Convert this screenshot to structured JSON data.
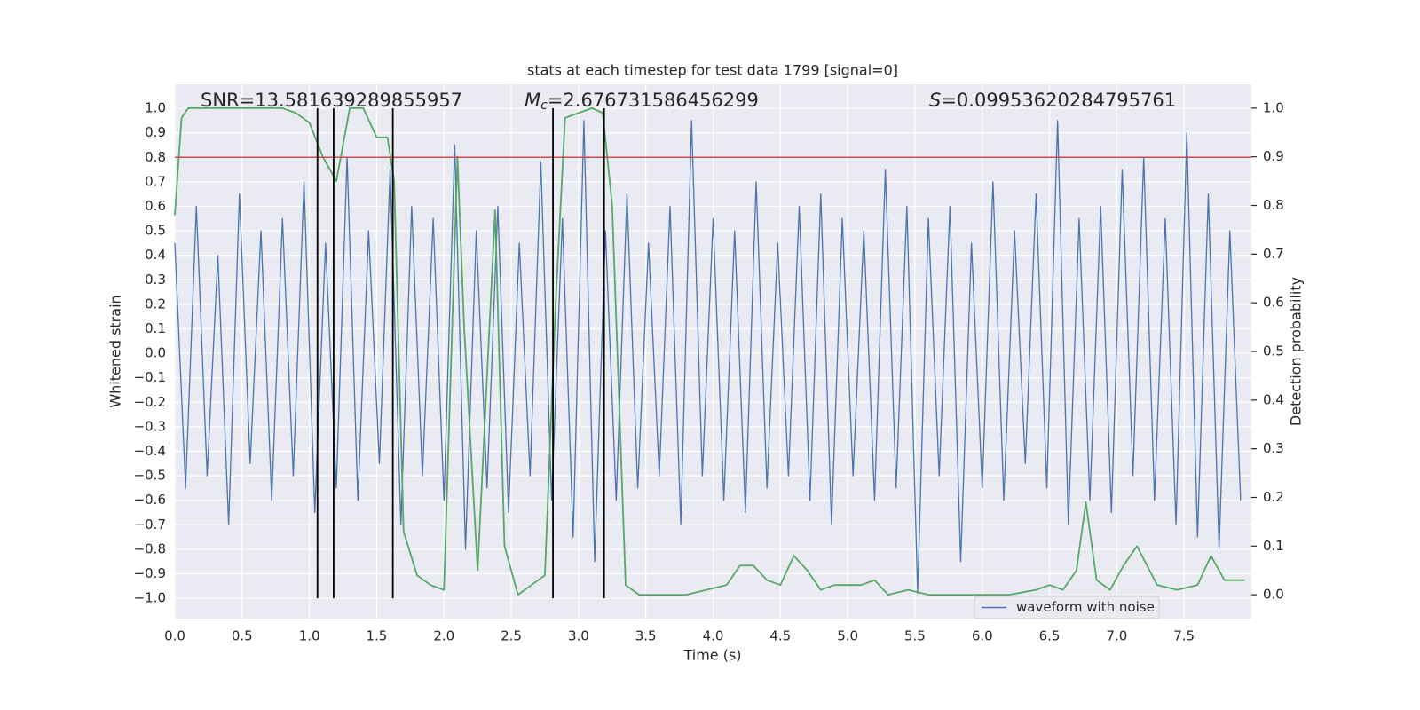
{
  "chart_data": {
    "type": "line",
    "title": "stats at each timestep for test data 1799 [signal=0]",
    "x_label": "Time (s)",
    "y_label": "Whitened strain",
    "y2_label": "Detection probability",
    "annotations": [
      {
        "text": "SNR=13.581639289855957"
      },
      {
        "symbol": "M",
        "subscript": "c",
        "text": "=2.676731586456299"
      },
      {
        "symbol": "S",
        "text": "=0.09953620284795761"
      }
    ],
    "xlim": [
      0,
      8
    ],
    "ylim": [
      -1.083,
      1.098
    ],
    "y2lim": [
      -0.049,
      1.049
    ],
    "xticks": [
      {
        "value": 0,
        "label": "0.0"
      },
      {
        "value": 0.5,
        "label": "0.5"
      },
      {
        "value": 1,
        "label": "1.0"
      },
      {
        "value": 1.5,
        "label": "1.5"
      },
      {
        "value": 2,
        "label": "2.0"
      },
      {
        "value": 2.5,
        "label": "2.5"
      },
      {
        "value": 3,
        "label": "3.0"
      },
      {
        "value": 3.5,
        "label": "3.5"
      },
      {
        "value": 4,
        "label": "4.0"
      },
      {
        "value": 4.5,
        "label": "4.5"
      },
      {
        "value": 5,
        "label": "5.0"
      },
      {
        "value": 5.5,
        "label": "5.5"
      },
      {
        "value": 6,
        "label": "6.0"
      },
      {
        "value": 6.5,
        "label": "6.5"
      },
      {
        "value": 7,
        "label": "7.0"
      },
      {
        "value": 7.5,
        "label": "7.5"
      }
    ],
    "yticks": [
      {
        "value": -1,
        "label": "−1.0"
      },
      {
        "value": -0.9,
        "label": "−0.9"
      },
      {
        "value": -0.8,
        "label": "−0.8"
      },
      {
        "value": -0.7,
        "label": "−0.7"
      },
      {
        "value": -0.6,
        "label": "−0.6"
      },
      {
        "value": -0.5,
        "label": "−0.5"
      },
      {
        "value": -0.4,
        "label": "−0.4"
      },
      {
        "value": -0.3,
        "label": "−0.3"
      },
      {
        "value": -0.2,
        "label": "−0.2"
      },
      {
        "value": -0.1,
        "label": "−0.1"
      },
      {
        "value": 0,
        "label": "0.0"
      },
      {
        "value": 0.1,
        "label": "0.1"
      },
      {
        "value": 0.2,
        "label": "0.2"
      },
      {
        "value": 0.3,
        "label": "0.3"
      },
      {
        "value": 0.4,
        "label": "0.4"
      },
      {
        "value": 0.5,
        "label": "0.5"
      },
      {
        "value": 0.6,
        "label": "0.6"
      },
      {
        "value": 0.7,
        "label": "0.7"
      },
      {
        "value": 0.8,
        "label": "0.8"
      },
      {
        "value": 0.9,
        "label": "0.9"
      },
      {
        "value": 1,
        "label": "1.0"
      }
    ],
    "y2ticks": [
      {
        "value": 0,
        "label": "0.0"
      },
      {
        "value": 0.1,
        "label": "0.1"
      },
      {
        "value": 0.2,
        "label": "0.2"
      },
      {
        "value": 0.3,
        "label": "0.3"
      },
      {
        "value": 0.4,
        "label": "0.4"
      },
      {
        "value": 0.5,
        "label": "0.5"
      },
      {
        "value": 0.6,
        "label": "0.6"
      },
      {
        "value": 0.7,
        "label": "0.7"
      },
      {
        "value": 0.8,
        "label": "0.8"
      },
      {
        "value": 0.9,
        "label": "0.9"
      },
      {
        "value": 1,
        "label": "1.0"
      }
    ],
    "grid": true,
    "legend": "lower right",
    "hline": {
      "y": 0.8,
      "color": "#c44e52"
    },
    "vlines": {
      "x": [
        1.06,
        1.18,
        1.62,
        2.81,
        3.19
      ],
      "ymin": -1,
      "ymax": 1,
      "color": "#000000"
    },
    "series": [
      {
        "name": "waveform with noise",
        "color": "#4c72b0",
        "x": [
          0,
          0.08,
          0.16,
          0.24,
          0.32,
          0.4,
          0.48,
          0.56,
          0.64,
          0.72,
          0.8,
          0.88,
          0.96,
          1.04,
          1.12,
          1.2,
          1.28,
          1.36,
          1.44,
          1.52,
          1.6,
          1.68,
          1.76,
          1.84,
          1.92,
          2,
          2.08,
          2.16,
          2.24,
          2.32,
          2.4,
          2.48,
          2.56,
          2.64,
          2.72,
          2.8,
          2.88,
          2.96,
          3.04,
          3.12,
          3.2,
          3.28,
          3.36,
          3.44,
          3.52,
          3.6,
          3.68,
          3.76,
          3.84,
          3.92,
          4,
          4.08,
          4.16,
          4.24,
          4.32,
          4.4,
          4.48,
          4.56,
          4.64,
          4.72,
          4.8,
          4.88,
          4.96,
          5.04,
          5.12,
          5.2,
          5.28,
          5.36,
          5.44,
          5.52,
          5.6,
          5.68,
          5.76,
          5.84,
          5.92,
          6,
          6.08,
          6.16,
          6.24,
          6.32,
          6.4,
          6.48,
          6.56,
          6.64,
          6.72,
          6.8,
          6.88,
          6.96,
          7.04,
          7.12,
          7.2,
          7.28,
          7.36,
          7.44,
          7.52,
          7.6,
          7.68,
          7.76,
          7.84,
          7.92
        ],
        "values": [
          0.45,
          -0.55,
          0.6,
          -0.5,
          0.4,
          -0.7,
          0.65,
          -0.45,
          0.5,
          -0.6,
          0.55,
          -0.5,
          0.7,
          -0.65,
          0.45,
          -0.55,
          0.8,
          -0.6,
          0.5,
          -0.45,
          0.75,
          -0.7,
          0.6,
          -0.5,
          0.55,
          -0.6,
          0.85,
          -0.8,
          0.5,
          -0.55,
          0.6,
          -0.65,
          0.45,
          -0.5,
          0.78,
          -0.6,
          0.55,
          -0.75,
          0.95,
          -0.85,
          0.5,
          -0.6,
          0.65,
          -0.55,
          0.45,
          -0.5,
          0.6,
          -0.7,
          0.95,
          -0.5,
          0.55,
          -0.6,
          0.5,
          -0.65,
          0.7,
          -0.55,
          0.45,
          -0.5,
          0.6,
          -0.6,
          0.65,
          -0.7,
          0.55,
          -0.5,
          0.5,
          -0.6,
          0.75,
          -0.55,
          0.6,
          -0.98,
          0.55,
          -0.5,
          0.6,
          -0.85,
          0.45,
          -0.55,
          0.7,
          -0.6,
          0.5,
          -0.45,
          0.65,
          -0.55,
          0.95,
          -0.7,
          0.55,
          -0.6,
          0.6,
          -0.65,
          0.75,
          -0.5,
          0.8,
          -0.6,
          0.55,
          -0.7,
          0.9,
          -0.75,
          0.65,
          -0.8,
          0.5,
          -0.6
        ]
      },
      {
        "color": "#55a868",
        "axis": "y2",
        "x": [
          0,
          0.05,
          0.1,
          0.2,
          0.5,
          0.8,
          0.9,
          1.0,
          1.1,
          1.2,
          1.3,
          1.4,
          1.5,
          1.58,
          1.63,
          1.7,
          1.8,
          1.9,
          2.0,
          2.1,
          2.15,
          2.25,
          2.38,
          2.45,
          2.55,
          2.65,
          2.75,
          2.83,
          2.9,
          3.0,
          3.1,
          3.18,
          3.25,
          3.35,
          3.45,
          3.6,
          3.8,
          3.95,
          4.1,
          4.2,
          4.3,
          4.4,
          4.5,
          4.6,
          4.7,
          4.8,
          4.9,
          5.0,
          5.1,
          5.2,
          5.3,
          5.45,
          5.6,
          5.8,
          6.0,
          6.2,
          6.4,
          6.5,
          6.6,
          6.7,
          6.77,
          6.85,
          6.95,
          7.05,
          7.15,
          7.3,
          7.45,
          7.6,
          7.7,
          7.8,
          7.95
        ],
        "values": [
          0.78,
          0.98,
          1.0,
          1.0,
          1.0,
          1.0,
          0.99,
          0.97,
          0.9,
          0.85,
          1.0,
          1.0,
          0.94,
          0.94,
          0.85,
          0.13,
          0.04,
          0.02,
          0.01,
          0.9,
          0.55,
          0.05,
          0.79,
          0.1,
          0.0,
          0.02,
          0.04,
          0.6,
          0.98,
          0.99,
          1.0,
          0.99,
          0.8,
          0.02,
          0.0,
          0.0,
          0.0,
          0.01,
          0.02,
          0.06,
          0.06,
          0.03,
          0.02,
          0.08,
          0.05,
          0.01,
          0.02,
          0.02,
          0.02,
          0.03,
          0.0,
          0.01,
          0.0,
          0.0,
          0.0,
          0.0,
          0.01,
          0.02,
          0.01,
          0.05,
          0.19,
          0.03,
          0.01,
          0.06,
          0.1,
          0.02,
          0.01,
          0.02,
          0.08,
          0.03,
          0.03
        ]
      }
    ]
  }
}
